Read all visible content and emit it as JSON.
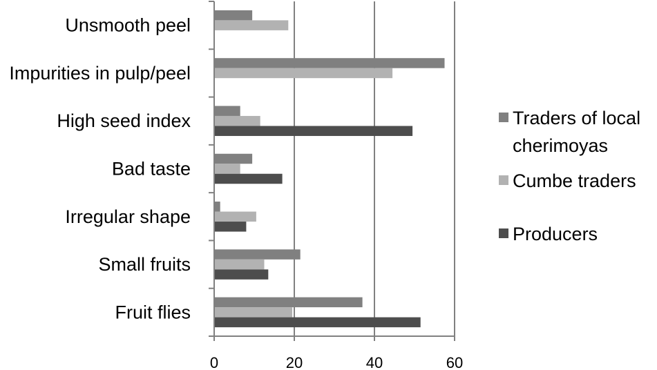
{
  "chart_data": {
    "type": "bar",
    "orientation": "horizontal",
    "categories": [
      "Unsmooth peel",
      "Impurities in pulp/peel",
      "High seed index",
      "Bad taste",
      "Irregular shape",
      "Small fruits",
      "Fruit flies"
    ],
    "series": [
      {
        "name": "Traders of local cherimoyas",
        "legend_lines": [
          "Traders of local",
          "cherimoyas"
        ],
        "color": "#808080",
        "values": [
          9.5,
          57.5,
          6.5,
          9.5,
          1.5,
          21.5,
          37
        ]
      },
      {
        "name": "Cumbe traders",
        "legend_lines": [
          "Cumbe traders"
        ],
        "color": "#b2b2b2",
        "values": [
          18.5,
          44.5,
          11.5,
          6.5,
          10.5,
          12.5,
          19.5
        ]
      },
      {
        "name": "Producers",
        "legend_lines": [
          "Producers"
        ],
        "color": "#4d4d4d",
        "values": [
          null,
          null,
          49.5,
          17,
          8,
          13.5,
          51.5
        ]
      }
    ],
    "x_ticks": [
      "0",
      "20",
      "40",
      "60"
    ],
    "xlim": [
      0,
      60
    ],
    "grid": "vertical",
    "legend_position": "right"
  }
}
